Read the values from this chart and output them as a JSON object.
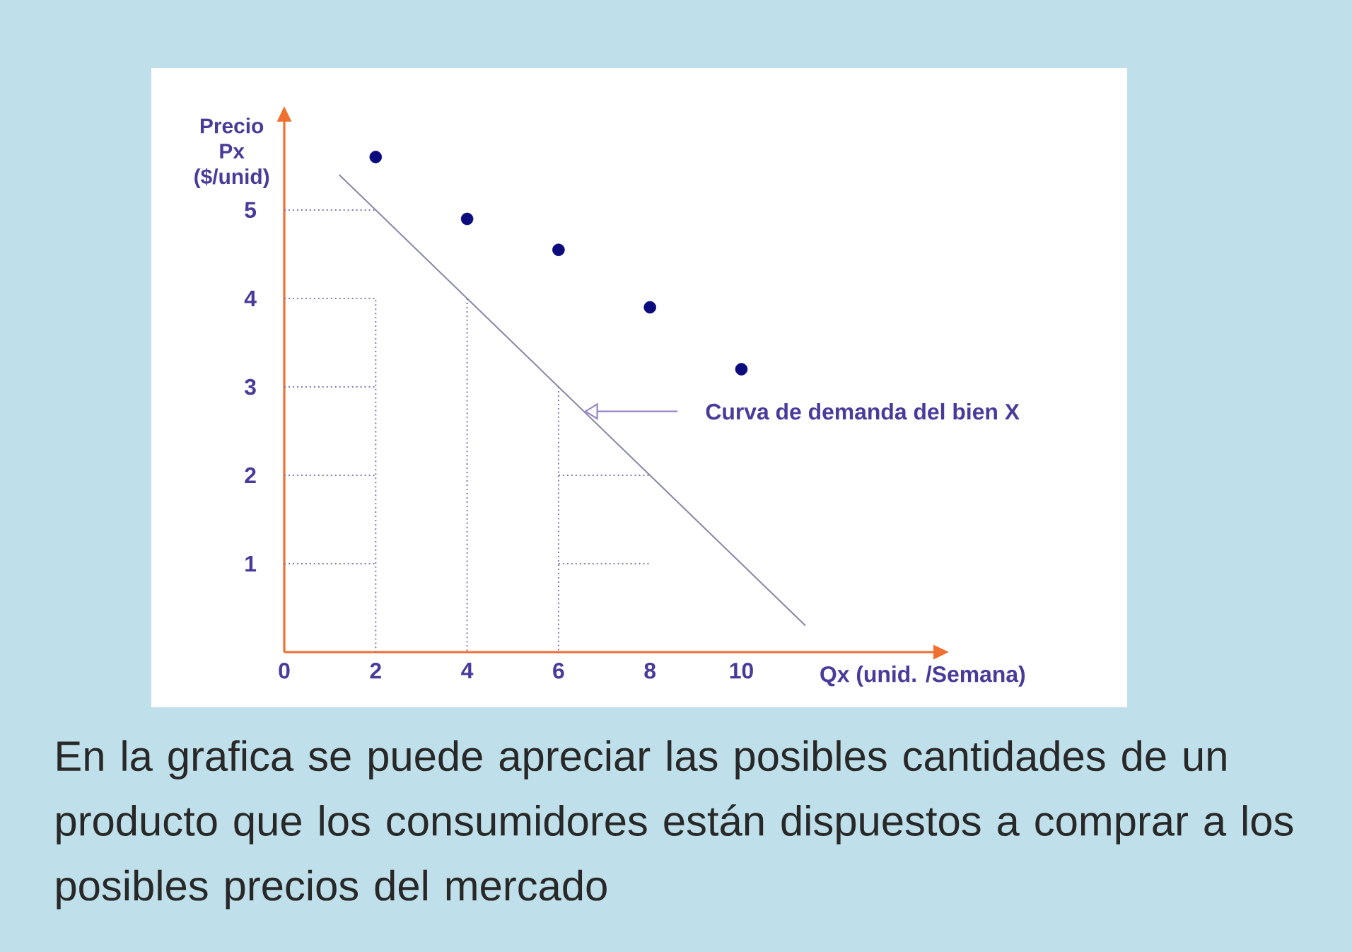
{
  "chart_data": {
    "type": "scatter",
    "ylabel": "Precio Px ($/unid)",
    "xlabel": "Qx (unid. /Semana)",
    "xlim": [
      0,
      14.2
    ],
    "ylim": [
      0,
      6
    ],
    "xticks": [
      0,
      2,
      4,
      6,
      8,
      10
    ],
    "yticks": [
      1,
      2,
      3,
      4,
      5
    ],
    "series": [
      {
        "color": "#0b0b7e",
        "marker": "circle",
        "x": [
          2,
          4,
          6,
          8,
          10
        ],
        "values": [
          5.6,
          4.9,
          4.55,
          3.9,
          3.2
        ]
      },
      {
        "type": "line",
        "name": "Curva de demanda del bien X",
        "color": "#8585a8",
        "marker": "none",
        "line_style": "solid",
        "x": [
          1.2,
          11.4
        ],
        "values": [
          5.4,
          0.3
        ]
      },
      {
        "type": "line",
        "color": "#7a7ab8",
        "marker": "none",
        "line_style": "dotted",
        "x": [
          0,
          2
        ],
        "values": [
          5,
          5
        ]
      },
      {
        "type": "line",
        "color": "#7a7ab8",
        "marker": "none",
        "line_style": "dotted",
        "x": [
          0,
          2,
          2
        ],
        "values": [
          4,
          4,
          0
        ]
      },
      {
        "type": "line",
        "color": "#7a7ab8",
        "marker": "none",
        "line_style": "dotted",
        "x": [
          0,
          2
        ],
        "values": [
          3,
          3
        ]
      },
      {
        "type": "line",
        "color": "#7a7ab8",
        "marker": "none",
        "line_style": "dotted",
        "x": [
          0,
          2
        ],
        "values": [
          2,
          2
        ]
      },
      {
        "type": "line",
        "color": "#7a7ab8",
        "marker": "none",
        "line_style": "dotted",
        "x": [
          0,
          2
        ],
        "values": [
          1,
          1
        ]
      },
      {
        "type": "line",
        "color": "#7a7ab8",
        "marker": "none",
        "line_style": "dotted",
        "x": [
          4,
          4
        ],
        "values": [
          4,
          0
        ]
      },
      {
        "type": "line",
        "color": "#7a7ab8",
        "marker": "none",
        "line_style": "dotted",
        "x": [
          6,
          6
        ],
        "values": [
          3,
          0
        ]
      },
      {
        "type": "line",
        "color": "#7a7ab8",
        "marker": "none",
        "line_style": "dotted",
        "x": [
          6,
          8
        ],
        "values": [
          2,
          2
        ]
      },
      {
        "type": "line",
        "color": "#7a7ab8",
        "marker": "none",
        "line_style": "dotted",
        "x": [
          6,
          8
        ],
        "values": [
          1,
          1
        ]
      }
    ],
    "annotations": [
      "En la grafica se puede apreciar las posibles cantidades de un producto que los consumidores están dispuestos a comprar a los posibles precios del mercado"
    ]
  }
}
